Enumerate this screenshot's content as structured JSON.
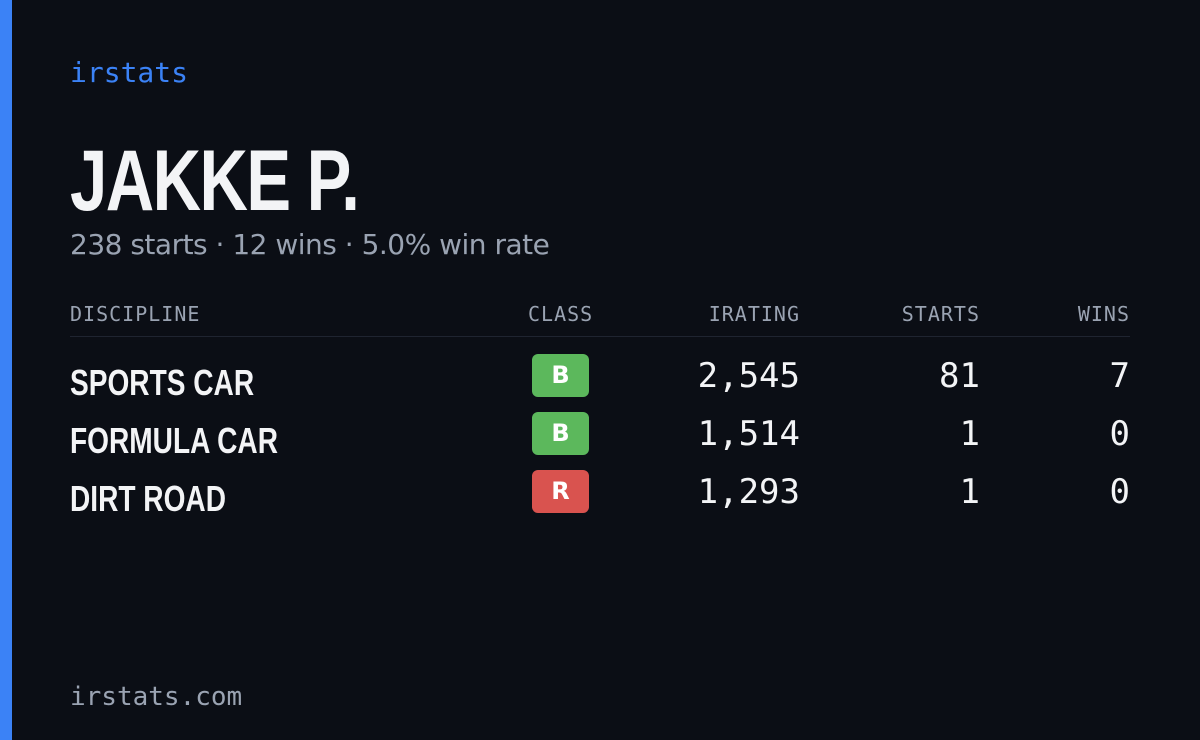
{
  "brand": "irstats",
  "player": {
    "name": "JAKKE P.",
    "summary": "238 starts · 12 wins · 5.0% win rate"
  },
  "table": {
    "headers": [
      "DISCIPLINE",
      "CLASS",
      "IRATING",
      "STARTS",
      "WINS"
    ],
    "rows": [
      [
        "SPORTS CAR",
        "B",
        "2,545",
        "81",
        "7"
      ],
      [
        "FORMULA CAR",
        "B",
        "1,514",
        "1",
        "0"
      ],
      [
        "DIRT ROAD",
        "R",
        "1,293",
        "1",
        "0"
      ]
    ]
  },
  "footer": "irstats.com"
}
